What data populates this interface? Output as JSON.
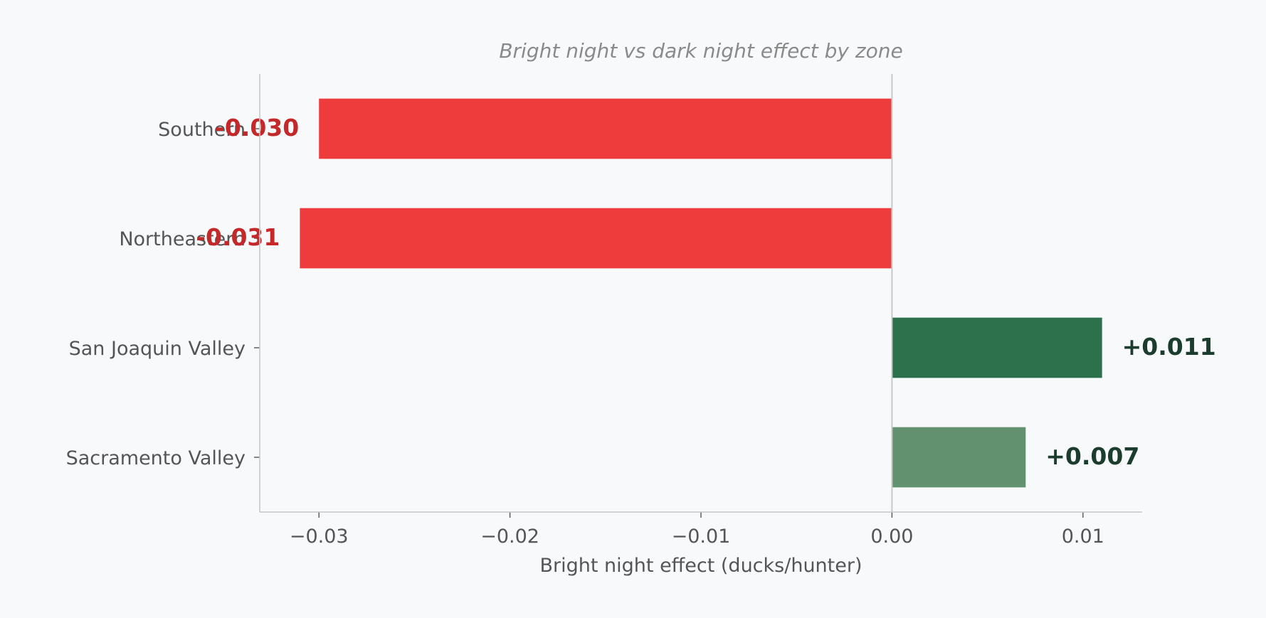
{
  "chart_data": {
    "type": "bar",
    "orientation": "horizontal",
    "title": "Bright night vs dark night effect by zone",
    "xlabel": "Bright night effect (ducks/hunter)",
    "ylabel": "",
    "categories": [
      "Southern",
      "Northeastern",
      "San Joaquin Valley",
      "Sacramento Valley"
    ],
    "values": [
      -0.03,
      -0.031,
      0.011,
      0.007
    ],
    "data_labels": [
      "-0.030",
      "-0.031",
      "+0.011",
      "+0.007"
    ],
    "bar_colors": [
      "#ee3b3b",
      "#ee3b3b",
      "#2d704c",
      "#61916f"
    ],
    "label_colors": [
      "#c42828",
      "#c42828",
      "#1b3d2d",
      "#1b3d2d"
    ],
    "xlim": [
      -0.0331,
      0.0131
    ],
    "xticks": [
      -0.03,
      -0.02,
      -0.01,
      0.0,
      0.01
    ],
    "xtick_labels": [
      "−0.03",
      "−0.02",
      "−0.01",
      "0.00",
      "0.01"
    ],
    "grid": false,
    "zero_line": true,
    "legend": "none"
  }
}
